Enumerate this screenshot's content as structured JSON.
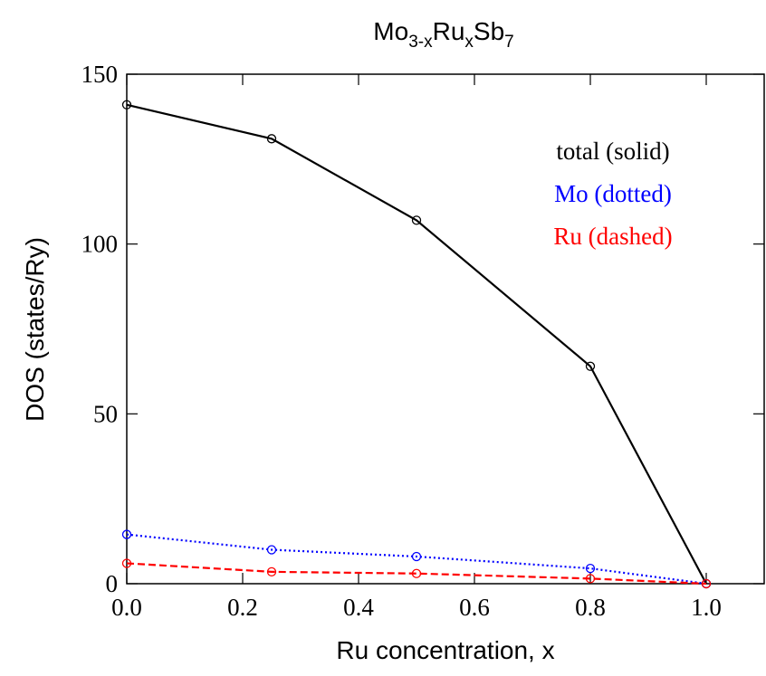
{
  "chart_data": {
    "type": "line",
    "title": [
      "Mo",
      "3-x",
      "Ru",
      "x",
      "Sb",
      "7"
    ],
    "xlabel": "Ru concentration, x",
    "ylabel": "DOS (states/Ry)",
    "x": [
      0,
      0.25,
      0.5,
      0.8,
      1.0
    ],
    "series": [
      {
        "name": "total (solid)",
        "color": "#000000",
        "dash": "solid",
        "values": [
          141,
          131,
          107,
          64,
          0
        ]
      },
      {
        "name": "Mo (dotted)",
        "color": "#0000ff",
        "dash": "dotted",
        "values": [
          14.5,
          10,
          8,
          4.5,
          0
        ]
      },
      {
        "name": "Ru (dashed)",
        "color": "#ff0000",
        "dash": "dashed",
        "values": [
          6,
          3.5,
          3,
          1.5,
          0
        ]
      }
    ],
    "xlim": [
      0,
      1.1
    ],
    "ylim": [
      0,
      150
    ],
    "xticks": [
      {
        "value": 0,
        "label": "0.0"
      },
      {
        "value": 0.2,
        "label": "0.2"
      },
      {
        "value": 0.4,
        "label": "0.4"
      },
      {
        "value": 0.6,
        "label": "0.6"
      },
      {
        "value": 0.8,
        "label": "0.8"
      },
      {
        "value": 1.0,
        "label": "1.0"
      }
    ],
    "yticks": [
      0,
      50,
      100,
      150
    ]
  }
}
